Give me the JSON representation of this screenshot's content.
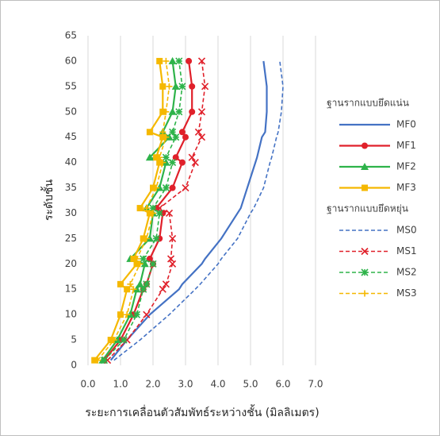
{
  "chart_data": {
    "type": "line",
    "x_label": "ระยะการเคลื่อนตัวสัมพัทธ์ระหว่างชั้น (มิลลิเมตร)",
    "y_label": "ระดับชั้น",
    "legend_groups": [
      "ฐานรากแบบยึดแน่น",
      "ฐานรากแบบยึดหยุ่น"
    ],
    "y": [
      1,
      5,
      10,
      15,
      16,
      20,
      21,
      25,
      30,
      31,
      35,
      40,
      41,
      45,
      46,
      50,
      55,
      60
    ],
    "xlim": [
      0,
      7
    ],
    "ylim": [
      0,
      65
    ],
    "xticks": [
      {
        "value": 0,
        "label": "0.0"
      },
      {
        "value": 1,
        "label": "1.0"
      },
      {
        "value": 2,
        "label": "2.0"
      },
      {
        "value": 3,
        "label": "3.0"
      },
      {
        "value": 4,
        "label": "4.0"
      },
      {
        "value": 5,
        "label": "5.0"
      },
      {
        "value": 6,
        "label": "6.0"
      },
      {
        "value": 7,
        "label": "7.0"
      }
    ],
    "yticks": [
      0,
      5,
      10,
      15,
      20,
      25,
      30,
      35,
      40,
      45,
      50,
      55,
      60,
      65
    ],
    "grid": "x",
    "series": [
      {
        "name": "MF0",
        "color": "#4472c4",
        "dash": false,
        "marker": "none",
        "values": [
          0.7,
          1.2,
          1.9,
          2.8,
          2.9,
          3.5,
          3.6,
          4.1,
          4.6,
          4.7,
          4.9,
          5.15,
          5.2,
          5.35,
          5.45,
          5.5,
          5.5,
          5.4
        ]
      },
      {
        "name": "MF1",
        "color": "#e0202a",
        "dash": false,
        "marker": "circle",
        "values": [
          0.5,
          1.0,
          1.4,
          1.7,
          1.8,
          2.0,
          1.9,
          2.2,
          2.3,
          2.1,
          2.6,
          2.9,
          2.7,
          3.0,
          2.9,
          3.2,
          3.2,
          3.1
        ]
      },
      {
        "name": "MF2",
        "color": "#2eb34a",
        "dash": false,
        "marker": "triangle",
        "values": [
          0.45,
          0.9,
          1.3,
          1.5,
          1.6,
          1.75,
          1.3,
          1.9,
          2.0,
          1.8,
          2.2,
          2.4,
          1.9,
          2.5,
          2.3,
          2.6,
          2.7,
          2.6
        ]
      },
      {
        "name": "MF3",
        "color": "#f5b800",
        "dash": false,
        "marker": "square",
        "values": [
          0.2,
          0.7,
          1.0,
          1.2,
          1.0,
          1.5,
          1.4,
          1.7,
          1.9,
          1.6,
          2.0,
          2.2,
          2.1,
          2.3,
          1.9,
          2.3,
          2.3,
          2.2
        ]
      },
      {
        "name": "MS0",
        "color": "#4472c4",
        "dash": true,
        "marker": "none",
        "values": [
          0.8,
          1.6,
          2.5,
          3.3,
          3.45,
          4.0,
          4.1,
          4.6,
          5.0,
          5.1,
          5.4,
          5.6,
          5.65,
          5.8,
          5.85,
          5.95,
          6.0,
          5.9
        ]
      },
      {
        "name": "MS1",
        "color": "#e0202a",
        "dash": true,
        "marker": "x",
        "values": [
          0.6,
          1.2,
          1.8,
          2.3,
          2.4,
          2.6,
          2.55,
          2.6,
          2.5,
          2.2,
          3.0,
          3.3,
          3.2,
          3.5,
          3.4,
          3.5,
          3.6,
          3.5
        ]
      },
      {
        "name": "MS2",
        "color": "#2eb34a",
        "dash": true,
        "marker": "star",
        "values": [
          0.5,
          1.1,
          1.5,
          1.7,
          1.8,
          2.0,
          1.7,
          2.1,
          2.2,
          2.0,
          2.4,
          2.6,
          2.4,
          2.7,
          2.6,
          2.8,
          2.9,
          2.8
        ]
      },
      {
        "name": "MS3",
        "color": "#f5b800",
        "dash": true,
        "marker": "plus",
        "values": [
          0.3,
          0.8,
          1.2,
          1.4,
          1.3,
          1.6,
          1.5,
          1.8,
          2.0,
          1.8,
          2.1,
          2.3,
          2.2,
          2.4,
          2.3,
          2.4,
          2.5,
          2.4
        ]
      }
    ]
  }
}
